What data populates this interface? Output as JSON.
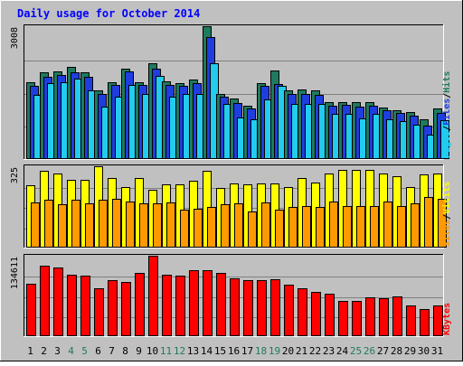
{
  "chart_data": [
    {
      "type": "bar",
      "title": "Daily usage for October 2014",
      "categories": [
        "1",
        "2",
        "3",
        "4",
        "5",
        "6",
        "7",
        "8",
        "9",
        "10",
        "11",
        "12",
        "13",
        "14",
        "15",
        "16",
        "17",
        "18",
        "19",
        "20",
        "21",
        "22",
        "23",
        "24",
        "25",
        "26",
        "27",
        "28",
        "29",
        "30",
        "31"
      ],
      "weekend_days": [
        "4",
        "5",
        "11",
        "12",
        "18",
        "19",
        "25",
        "26"
      ],
      "ymax_label": "3008",
      "ylim": [
        0,
        3008
      ],
      "grid": true,
      "series": [
        {
          "name": "Hits",
          "color": "#1f7a5f",
          "values": [
            1740,
            1960,
            1980,
            2090,
            1960,
            1540,
            1740,
            2040,
            1740,
            2160,
            1760,
            1720,
            1790,
            3008,
            1470,
            1350,
            1200,
            1720,
            1990,
            1540,
            1570,
            1540,
            1270,
            1270,
            1280,
            1270,
            1160,
            1100,
            1050,
            880,
            1140
          ]
        },
        {
          "name": "Files",
          "color": "#1e3ee0",
          "values": [
            1640,
            1860,
            1900,
            1950,
            1860,
            1460,
            1660,
            1970,
            1660,
            2030,
            1670,
            1640,
            1700,
            2770,
            1400,
            1250,
            1130,
            1640,
            1690,
            1460,
            1470,
            1450,
            1200,
            1210,
            1180,
            1200,
            1090,
            1030,
            970,
            740,
            1030
          ]
        },
        {
          "name": "Pages",
          "color": "#22ccee",
          "values": [
            1440,
            1720,
            1740,
            1820,
            1540,
            1170,
            1400,
            1670,
            1470,
            1880,
            1400,
            1460,
            1470,
            2170,
            1240,
            930,
            890,
            1340,
            1640,
            1240,
            1240,
            1230,
            1000,
            1000,
            900,
            1000,
            890,
            840,
            760,
            530,
            870
          ]
        }
      ],
      "side_label": [
        "Pages",
        "/",
        "Files",
        "/",
        "Hits"
      ]
    },
    {
      "type": "bar",
      "categories": [
        "1",
        "2",
        "3",
        "4",
        "5",
        "6",
        "7",
        "8",
        "9",
        "10",
        "11",
        "12",
        "13",
        "14",
        "15",
        "16",
        "17",
        "18",
        "19",
        "20",
        "21",
        "22",
        "23",
        "24",
        "25",
        "26",
        "27",
        "28",
        "29",
        "30",
        "31"
      ],
      "ymax_label": "325",
      "ylim": [
        0,
        325
      ],
      "grid": true,
      "series": [
        {
          "name": "Visits",
          "color": "#ffff00",
          "values": [
            249,
            306,
            296,
            271,
            271,
            324,
            276,
            241,
            276,
            231,
            251,
            251,
            266,
            306,
            236,
            256,
            251,
            256,
            256,
            241,
            276,
            261,
            296,
            311,
            311,
            311,
            296,
            286,
            241,
            291,
            296
          ]
        },
        {
          "name": "Sites",
          "color": "#ff9900",
          "values": [
            179,
            191,
            171,
            189,
            176,
            191,
            194,
            181,
            176,
            176,
            179,
            151,
            154,
            159,
            173,
            174,
            143,
            179,
            151,
            161,
            163,
            161,
            184,
            166,
            166,
            164,
            181,
            164,
            176,
            201,
            194
          ]
        }
      ],
      "side_label": [
        "Sites",
        "/",
        "Visits"
      ]
    },
    {
      "type": "bar",
      "categories": [
        "1",
        "2",
        "3",
        "4",
        "5",
        "6",
        "7",
        "8",
        "9",
        "10",
        "11",
        "12",
        "13",
        "14",
        "15",
        "16",
        "17",
        "18",
        "19",
        "20",
        "21",
        "22",
        "23",
        "24",
        "25",
        "26",
        "27",
        "28",
        "29",
        "30",
        "31"
      ],
      "ymax_label": "134611",
      "ylim": [
        0,
        134611
      ],
      "grid": true,
      "series": [
        {
          "name": "KBytes",
          "color": "#ff0000",
          "values": [
            86700,
            117800,
            115000,
            102000,
            101000,
            79000,
            93000,
            90000,
            106000,
            134611,
            102000,
            101000,
            110500,
            110500,
            106000,
            96000,
            93000,
            93500,
            94500,
            85000,
            80000,
            74000,
            70500,
            58000,
            58000,
            63600,
            62000,
            66000,
            50000,
            44000,
            50400
          ]
        }
      ],
      "side_label": [
        "KBytes"
      ]
    }
  ]
}
